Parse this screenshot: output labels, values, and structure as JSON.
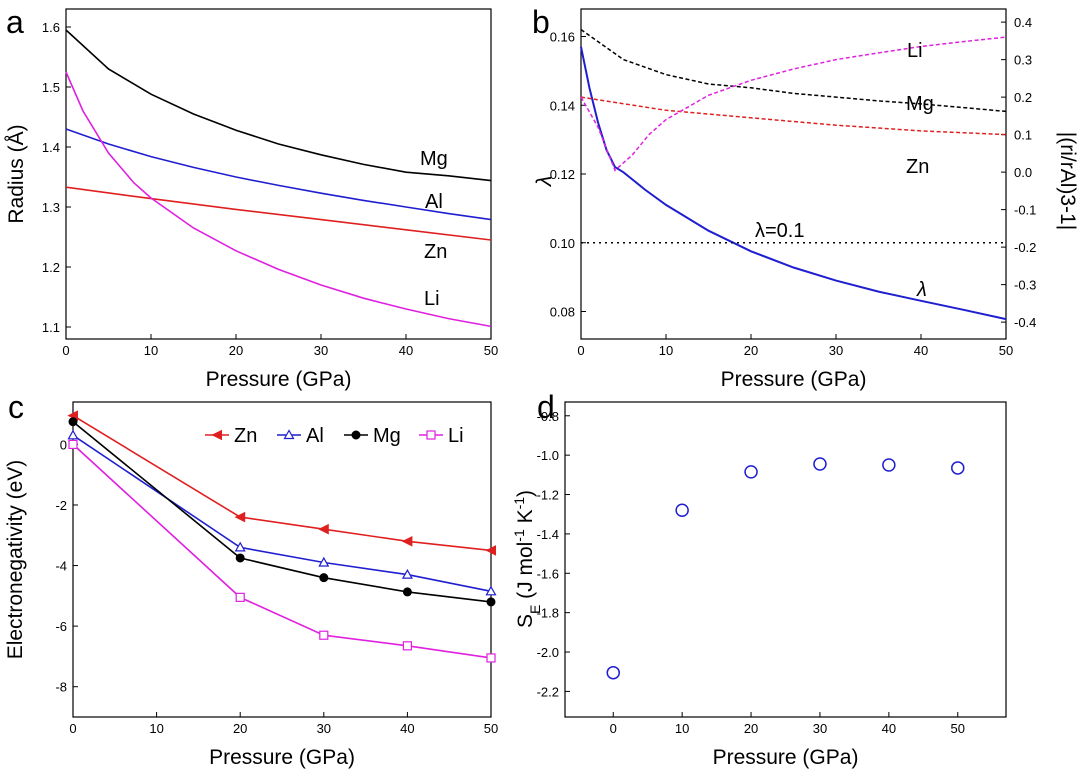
{
  "chart_data": [
    {
      "panel": "a",
      "type": "line",
      "xlabel": "Pressure (GPa)",
      "ylabel": "Radius (Å)",
      "xlim": [
        0,
        50
      ],
      "ylim": [
        1.08,
        1.63
      ],
      "xticks": [
        "0",
        "10",
        "20",
        "30",
        "40",
        "50"
      ],
      "yticks": [
        "1.1",
        "1.2",
        "1.3",
        "1.4",
        "1.5",
        "1.6"
      ],
      "grid": false,
      "series": [
        {
          "name": "Mg",
          "color": "#000000",
          "x": [
            0,
            5,
            10,
            15,
            20,
            25,
            30,
            35,
            40,
            45,
            50
          ],
          "y": [
            1.595,
            1.53,
            1.488,
            1.455,
            1.428,
            1.405,
            1.387,
            1.371,
            1.358,
            1.352,
            1.344
          ]
        },
        {
          "name": "Al",
          "color": "#1f1fd0",
          "x": [
            0,
            5,
            10,
            15,
            20,
            25,
            30,
            35,
            40,
            45,
            50
          ],
          "y": [
            1.43,
            1.405,
            1.384,
            1.366,
            1.35,
            1.336,
            1.323,
            1.311,
            1.3,
            1.289,
            1.279
          ]
        },
        {
          "name": "Zn",
          "color": "#e02020",
          "x": [
            0,
            10,
            20,
            30,
            40,
            50
          ],
          "y": [
            1.333,
            1.314,
            1.296,
            1.279,
            1.262,
            1.245
          ]
        },
        {
          "name": "Li",
          "color": "#e020e0",
          "x": [
            0,
            2,
            5,
            8,
            10,
            15,
            20,
            25,
            30,
            35,
            40,
            45,
            50
          ],
          "y": [
            1.525,
            1.46,
            1.39,
            1.34,
            1.315,
            1.265,
            1.227,
            1.196,
            1.17,
            1.148,
            1.13,
            1.114,
            1.101
          ]
        }
      ]
    },
    {
      "panel": "b",
      "type": "line",
      "xlabel": "Pressure (GPa)",
      "ylabel": "λ",
      "y2label": "|(ri/rAl)3-1|",
      "xlim": [
        0,
        50
      ],
      "ylim": [
        0.072,
        0.168
      ],
      "y2lim": [
        -0.445,
        0.435
      ],
      "xticks": [
        "0",
        "10",
        "20",
        "30",
        "40",
        "50"
      ],
      "yticks": [
        "0.08",
        "0.10",
        "0.12",
        "0.14",
        "0.16"
      ],
      "y2ticks": [
        "-0.4",
        "-0.3",
        "-0.2",
        "-0.1",
        "0.0",
        "0.1",
        "0.2",
        "0.3",
        "0.4"
      ],
      "annotation": "λ=0.1",
      "series": [
        {
          "name": "λ",
          "axis": "left",
          "style": "solid",
          "color": "#1f1fd0",
          "x": [
            0,
            1,
            2,
            3,
            4,
            5,
            7.5,
            10,
            15,
            20,
            25,
            30,
            35,
            40,
            45,
            50
          ],
          "y": [
            0.157,
            0.145,
            0.135,
            0.127,
            0.122,
            0.1205,
            0.1155,
            0.111,
            0.1035,
            0.0975,
            0.0928,
            0.089,
            0.0858,
            0.0831,
            0.0805,
            0.0778
          ]
        },
        {
          "name": "λ=0.1",
          "axis": "left",
          "style": "dotted",
          "color": "#000000",
          "x": [
            0,
            50
          ],
          "y": [
            0.1,
            0.1
          ]
        },
        {
          "name": "Mg",
          "axis": "right",
          "style": "dashed",
          "color": "#000000",
          "x": [
            0,
            5,
            10,
            15,
            20,
            25,
            30,
            35,
            40,
            45,
            50
          ],
          "y": [
            0.38,
            0.3,
            0.26,
            0.235,
            0.225,
            0.21,
            0.2,
            0.19,
            0.182,
            0.172,
            0.162
          ]
        },
        {
          "name": "Zn",
          "axis": "right",
          "style": "dashed",
          "color": "#e02020",
          "x": [
            0,
            10,
            20,
            30,
            40,
            50
          ],
          "y": [
            0.2,
            0.165,
            0.145,
            0.125,
            0.11,
            0.1
          ]
        },
        {
          "name": "Li",
          "axis": "right",
          "style": "dashed",
          "color": "#e020e0",
          "x": [
            0,
            2,
            4,
            6,
            8,
            10,
            15,
            20,
            25,
            30,
            35,
            40,
            45,
            50
          ],
          "y": [
            0.2,
            0.12,
            0.005,
            0.045,
            0.1,
            0.14,
            0.205,
            0.245,
            0.275,
            0.3,
            0.318,
            0.335,
            0.348,
            0.36
          ]
        }
      ],
      "curve_labels": [
        "Li",
        "Mg",
        "Zn",
        "λ"
      ]
    },
    {
      "panel": "c",
      "type": "line",
      "xlabel": "Pressure (GPa)",
      "ylabel": "Electronegativity (eV)",
      "xlim": [
        0,
        50
      ],
      "ylim": [
        -9,
        1.4
      ],
      "xticks": [
        "0",
        "10",
        "20",
        "30",
        "40",
        "50"
      ],
      "yticks": [
        "-8",
        "-6",
        "-4",
        "-2",
        "0"
      ],
      "legend_position": "top-right",
      "series": [
        {
          "name": "Zn",
          "marker": "triangle-left-filled",
          "color": "#e02020",
          "x": [
            0,
            20,
            30,
            40,
            50
          ],
          "y": [
            0.95,
            -2.4,
            -2.8,
            -3.2,
            -3.5
          ]
        },
        {
          "name": "Al",
          "marker": "triangle-open",
          "color": "#1f1fd0",
          "x": [
            0,
            20,
            30,
            40,
            50
          ],
          "y": [
            0.3,
            -3.4,
            -3.9,
            -4.3,
            -4.85
          ]
        },
        {
          "name": "Mg",
          "marker": "circle-filled",
          "color": "#000000",
          "x": [
            0,
            20,
            30,
            40,
            50
          ],
          "y": [
            0.75,
            -3.75,
            -4.4,
            -4.87,
            -5.2
          ]
        },
        {
          "name": "Li",
          "marker": "square-open",
          "color": "#e020e0",
          "x": [
            0,
            20,
            30,
            40,
            50
          ],
          "y": [
            0.0,
            -5.05,
            -6.3,
            -6.65,
            -7.05
          ]
        }
      ]
    },
    {
      "panel": "d",
      "type": "scatter",
      "xlabel": "Pressure (GPa)",
      "ylabel": "SE (J mol-1 K-1)",
      "xlim": [
        -7,
        57
      ],
      "ylim": [
        -2.33,
        -0.73
      ],
      "xticks": [
        "0",
        "10",
        "20",
        "30",
        "40",
        "50"
      ],
      "yticks": [
        "-2.2",
        "-2.0",
        "-1.8",
        "-1.6",
        "-1.4",
        "-1.2",
        "-1.0",
        "-0.8"
      ],
      "series": [
        {
          "marker": "circle-open",
          "color": "#1f1fd0",
          "x": [
            0,
            10,
            20,
            30,
            40,
            50
          ],
          "y": [
            -2.105,
            -1.28,
            -1.085,
            -1.045,
            -1.05,
            -1.065
          ]
        }
      ]
    }
  ]
}
